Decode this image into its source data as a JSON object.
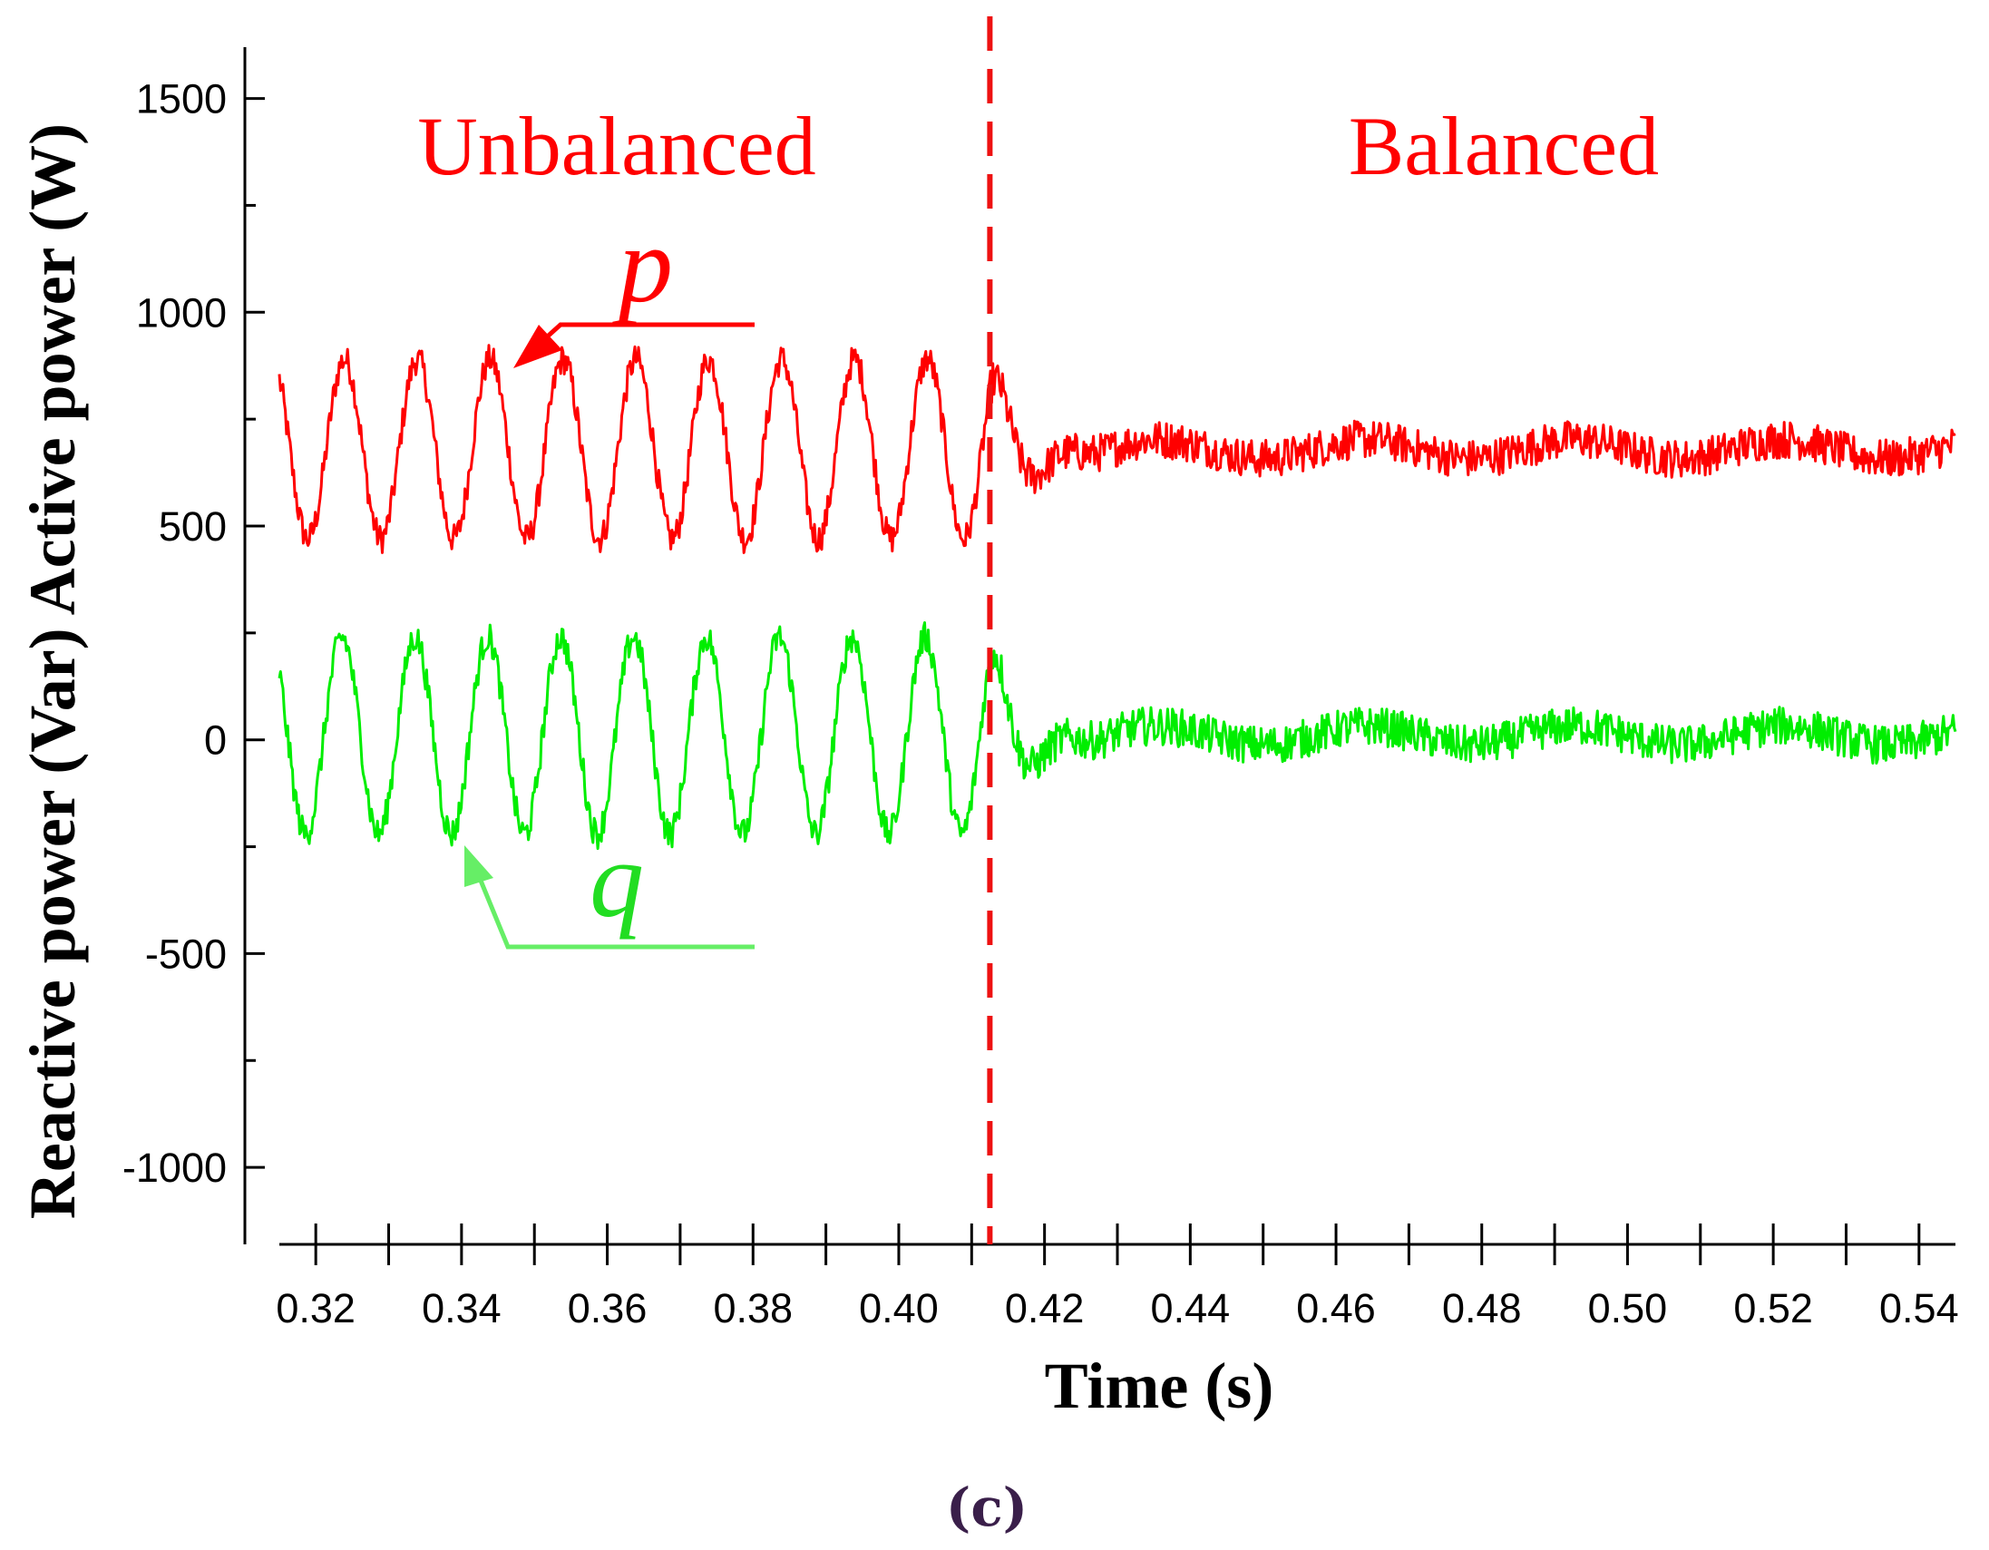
{
  "chart_data": {
    "type": "line",
    "title": "",
    "xlabel": "Time (s)",
    "ylabel": "Reactive power (Var) Active power (W)",
    "xlim": [
      0.315,
      0.545
    ],
    "ylim": [
      -1180,
      1620
    ],
    "x_ticks": [
      0.32,
      0.34,
      0.36,
      0.38,
      0.4,
      0.42,
      0.44,
      0.46,
      0.48,
      0.5,
      0.52,
      0.54
    ],
    "x_tick_labels": [
      "0.32",
      "0.34",
      "0.36",
      "0.38",
      "0.40",
      "0.42",
      "0.44",
      "0.46",
      "0.48",
      "0.50",
      "0.52",
      "0.54"
    ],
    "y_ticks": [
      1500,
      1000,
      500,
      0,
      -500,
      -1000
    ],
    "y_tick_labels": [
      "1500",
      "1000",
      "500",
      "0",
      "-500",
      "-1000"
    ],
    "transition_time": 0.4125,
    "regions": [
      {
        "name": "Unbalanced",
        "t_start": 0.315,
        "t_end": 0.4125
      },
      {
        "name": "Balanced",
        "t_start": 0.4125,
        "t_end": 0.545
      }
    ],
    "series": [
      {
        "name": "p",
        "color": "#ff0000",
        "unit": "W",
        "mean": 680,
        "oscillation_amplitude_unbalanced": 210,
        "oscillation_frequency_hz": 100,
        "noise_amplitude_balanced": 45,
        "label_annotation_point": {
          "t": 0.3465,
          "value": 895
        }
      },
      {
        "name": "q",
        "color": "#00ee00",
        "unit": "Var",
        "mean": 10,
        "oscillation_amplitude_unbalanced": 230,
        "oscillation_frequency_hz": 100,
        "noise_amplitude_balanced": 45,
        "label_annotation_point": {
          "t": 0.3385,
          "value": -230
        }
      }
    ]
  },
  "panel_label": "(c)"
}
